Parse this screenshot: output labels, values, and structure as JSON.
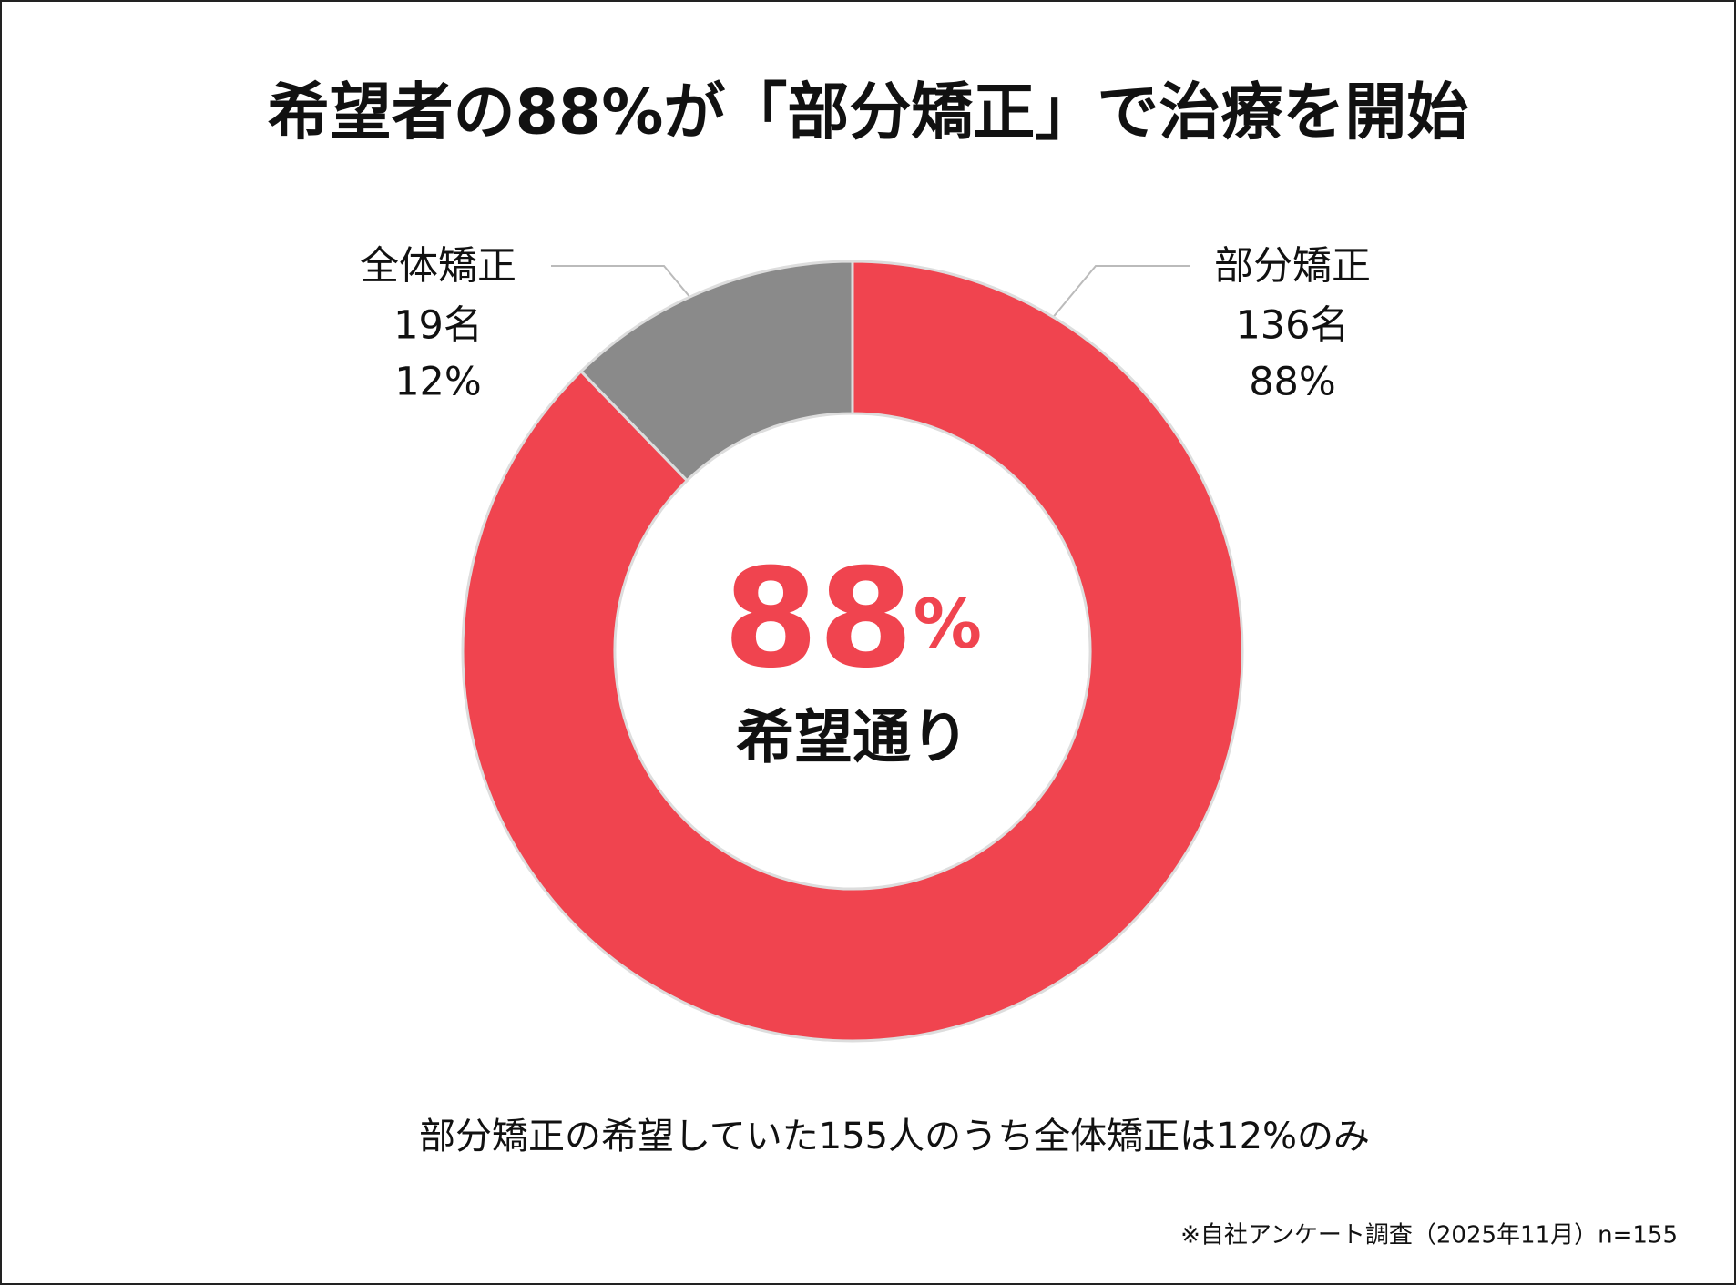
{
  "chart_data": {
    "type": "donut",
    "title": "希望者の88%が「部分矯正」で治療を開始",
    "categories": [
      "部分矯正",
      "全体矯正"
    ],
    "values": [
      136,
      19
    ],
    "value_labels": [
      "136名",
      "19名"
    ],
    "percent_labels": [
      "88%",
      "12%"
    ],
    "colors": [
      "#f0444f",
      "#8a8a8a"
    ],
    "center_number": "88",
    "center_unit": "%",
    "center_caption": "希望通り",
    "subtitle": "部分矯正の希望していた155人のうち全体矯正は12%のみ",
    "note": "※自社アンケート調査（2025年11月）n=155"
  }
}
